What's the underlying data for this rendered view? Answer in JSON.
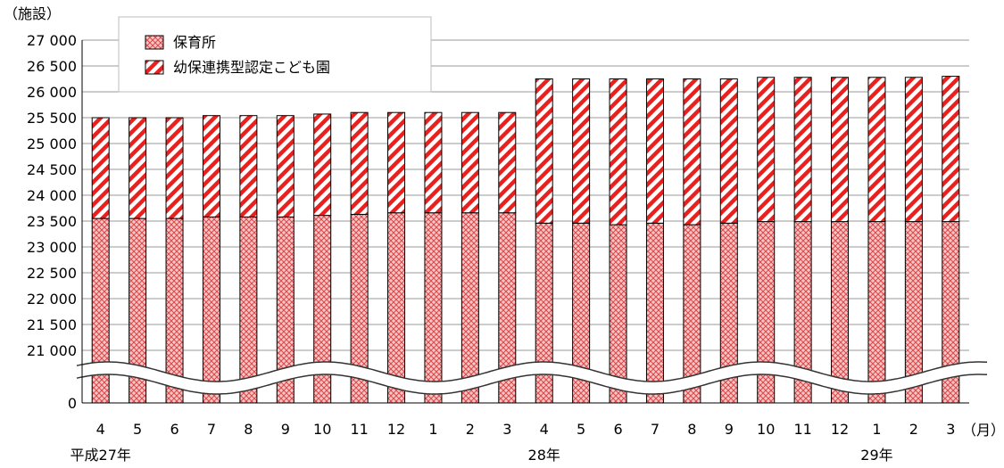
{
  "chart_data": {
    "type": "bar",
    "stacked": true,
    "broken_y_axis": true,
    "y_unit_label": "（施設）",
    "x_unit_label": "（月）",
    "categories": [
      "4",
      "5",
      "6",
      "7",
      "8",
      "9",
      "10",
      "11",
      "12",
      "1",
      "2",
      "3",
      "4",
      "5",
      "6",
      "7",
      "8",
      "9",
      "10",
      "11",
      "12",
      "1",
      "2",
      "3"
    ],
    "era_labels": [
      {
        "text": "平成27年",
        "category_index": 0
      },
      {
        "text": "28年",
        "category_index": 12
      },
      {
        "text": "29年",
        "category_index": 21
      }
    ],
    "y_ticks": [
      "0",
      "21 000",
      "21 500",
      "22 000",
      "22 500",
      "23 000",
      "23 500",
      "24 000",
      "24 500",
      "25 000",
      "25 500",
      "26 000",
      "26 500",
      "27 000"
    ],
    "ylim_upper": [
      21000,
      27000
    ],
    "series": [
      {
        "name": "保育所",
        "values": [
          23550,
          23550,
          23550,
          23580,
          23580,
          23580,
          23610,
          23630,
          23660,
          23660,
          23660,
          23660,
          23460,
          23460,
          23430,
          23460,
          23430,
          23460,
          23490,
          23490,
          23490,
          23490,
          23490,
          23490
        ]
      },
      {
        "name": "幼保連携型認定こども園",
        "values": [
          1950,
          1950,
          1950,
          1960,
          1960,
          1960,
          1960,
          1970,
          1940,
          1940,
          1940,
          1940,
          2790,
          2790,
          2820,
          2790,
          2820,
          2790,
          2790,
          2790,
          2790,
          2790,
          2790,
          2810
        ]
      }
    ],
    "legend_position": "top-left",
    "colors": {
      "series1_fill": "#f2b3b3",
      "series1_pattern": "#d94040",
      "series2_stripe": "#e8201e",
      "grid": "#9a9a9a"
    }
  }
}
